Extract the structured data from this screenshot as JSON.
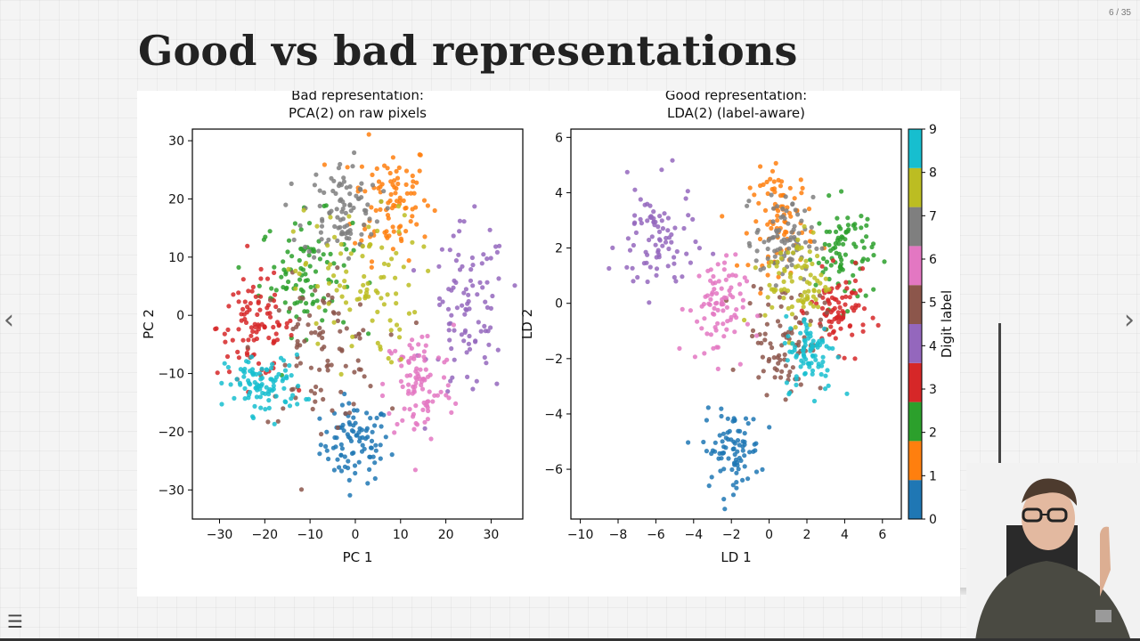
{
  "slide": {
    "title": "Good vs bad representations",
    "counter": "6 / 35"
  },
  "nav": {
    "prev_icon": "chevron-left-icon",
    "next_icon": "chevron-right-icon",
    "menu_icon": "hamburger-menu-icon"
  },
  "colorbar": {
    "label": "Digit label",
    "ticks": [
      "0",
      "1",
      "2",
      "3",
      "4",
      "5",
      "6",
      "7",
      "8",
      "9"
    ],
    "colors": [
      "#1f77b4",
      "#ff7f0e",
      "#2ca02c",
      "#d62728",
      "#9467bd",
      "#8c564b",
      "#e377c2",
      "#7f7f7f",
      "#bcbd22",
      "#17becf"
    ]
  },
  "chart_data": [
    {
      "type": "scatter",
      "title": "Bad representation:\nPCA(2) on raw pixels",
      "title_lines": [
        "Bad representation:",
        "PCA(2) on raw pixels"
      ],
      "xlabel": "PC 1",
      "ylabel": "PC 2",
      "xlim": [
        -36,
        37
      ],
      "ylim": [
        -35,
        32
      ],
      "xticks": [
        -30,
        -20,
        -10,
        0,
        10,
        20,
        30
      ],
      "yticks": [
        -30,
        -20,
        -10,
        0,
        10,
        20,
        30
      ],
      "color_by": "Digit label",
      "cluster_centers": [
        {
          "label": 0,
          "x": 0,
          "y": -22
        },
        {
          "label": 1,
          "x": 8,
          "y": 20
        },
        {
          "label": 2,
          "x": -11,
          "y": 7
        },
        {
          "label": 3,
          "x": -22,
          "y": -2
        },
        {
          "label": 4,
          "x": 25,
          "y": 0
        },
        {
          "label": 5,
          "x": -8,
          "y": -6
        },
        {
          "label": 6,
          "x": 14,
          "y": -12
        },
        {
          "label": 7,
          "x": -3,
          "y": 18
        },
        {
          "label": 8,
          "x": 0,
          "y": 5
        },
        {
          "label": 9,
          "x": -20,
          "y": -12
        }
      ],
      "cluster_spread": [
        {
          "label": 0,
          "sx": 4.5,
          "sy": 4
        },
        {
          "label": 1,
          "sx": 5,
          "sy": 6
        },
        {
          "label": 2,
          "sx": 6,
          "sy": 6
        },
        {
          "label": 3,
          "sx": 5,
          "sy": 5
        },
        {
          "label": 4,
          "sx": 5,
          "sy": 9
        },
        {
          "label": 5,
          "sx": 8,
          "sy": 7
        },
        {
          "label": 6,
          "sx": 4.5,
          "sy": 6
        },
        {
          "label": 7,
          "sx": 5,
          "sy": 5
        },
        {
          "label": 8,
          "sx": 8,
          "sy": 8
        },
        {
          "label": 9,
          "sx": 5,
          "sy": 3
        }
      ]
    },
    {
      "type": "scatter",
      "title": "Good representation:\nLDA(2) (label-aware)",
      "title_lines": [
        "Good representation:",
        "LDA(2) (label-aware)"
      ],
      "xlabel": "LD 1",
      "ylabel": "LD 2",
      "xlim": [
        -10.5,
        7
      ],
      "ylim": [
        -7.8,
        6.3
      ],
      "xticks": [
        -10,
        -8,
        -6,
        -4,
        -2,
        0,
        2,
        4,
        6
      ],
      "yticks": [
        -6,
        -4,
        -2,
        0,
        2,
        4,
        6
      ],
      "color_by": "Digit label",
      "cluster_centers": [
        {
          "label": 0,
          "x": -2,
          "y": -5.3
        },
        {
          "label": 1,
          "x": 0.7,
          "y": 3
        },
        {
          "label": 2,
          "x": 4,
          "y": 1.8
        },
        {
          "label": 3,
          "x": 3.7,
          "y": -0.3
        },
        {
          "label": 4,
          "x": -6,
          "y": 2.2
        },
        {
          "label": 5,
          "x": 0.8,
          "y": -1.2
        },
        {
          "label": 6,
          "x": -2.8,
          "y": -0.2
        },
        {
          "label": 7,
          "x": 0.8,
          "y": 2.3
        },
        {
          "label": 8,
          "x": 1.5,
          "y": 0.8
        },
        {
          "label": 9,
          "x": 2.2,
          "y": -1.8
        }
      ],
      "cluster_spread": [
        {
          "label": 0,
          "sx": 0.9,
          "sy": 0.8
        },
        {
          "label": 1,
          "sx": 1,
          "sy": 1.1
        },
        {
          "label": 2,
          "sx": 0.9,
          "sy": 1.1
        },
        {
          "label": 3,
          "sx": 0.9,
          "sy": 0.8
        },
        {
          "label": 4,
          "sx": 1.2,
          "sy": 1.2
        },
        {
          "label": 5,
          "sx": 1.2,
          "sy": 1.2
        },
        {
          "label": 6,
          "sx": 0.9,
          "sy": 1.1
        },
        {
          "label": 7,
          "sx": 0.9,
          "sy": 0.9
        },
        {
          "label": 8,
          "sx": 1,
          "sy": 1.1
        },
        {
          "label": 9,
          "sx": 0.8,
          "sy": 0.8
        }
      ]
    }
  ]
}
